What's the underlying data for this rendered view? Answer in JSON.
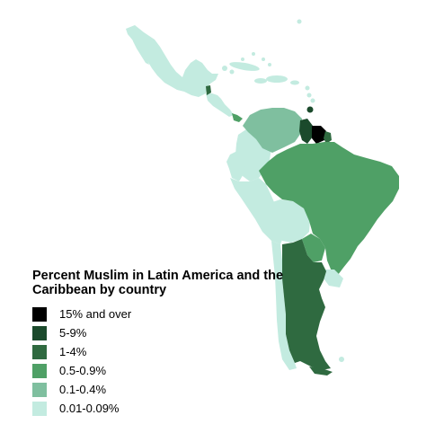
{
  "legend": {
    "title": "Percent Muslim in Latin America and the Caribbean by country",
    "items": [
      {
        "label": "15% and over",
        "color": "#000000"
      },
      {
        "label": "5-9%",
        "color": "#1b4a2c"
      },
      {
        "label": "1-4%",
        "color": "#2f6a40"
      },
      {
        "label": "0.5-0.9%",
        "color": "#4fa066"
      },
      {
        "label": "0.1-0.4%",
        "color": "#7fbf9f"
      },
      {
        "label": "0.01-0.09%",
        "color": "#c3ebe0"
      }
    ]
  },
  "regions": [
    {
      "name": "Mexico",
      "category": "0.01-0.09%"
    },
    {
      "name": "Central America",
      "category": "0.01-0.09%"
    },
    {
      "name": "Belize",
      "category": "1-4%"
    },
    {
      "name": "Panama",
      "category": "0.5-0.9%"
    },
    {
      "name": "Caribbean islands",
      "category": "0.01-0.09%"
    },
    {
      "name": "Trinidad and Tobago",
      "category": "5-9%"
    },
    {
      "name": "Colombia",
      "category": "0.01-0.09%"
    },
    {
      "name": "Venezuela",
      "category": "0.1-0.4%"
    },
    {
      "name": "Guyana",
      "category": "5-9%"
    },
    {
      "name": "Suriname",
      "category": "15% and over"
    },
    {
      "name": "French Guiana",
      "category": "1-4%"
    },
    {
      "name": "Ecuador",
      "category": "0.01-0.09%"
    },
    {
      "name": "Peru",
      "category": "0.01-0.09%"
    },
    {
      "name": "Bolivia",
      "category": "0.01-0.09%"
    },
    {
      "name": "Brazil",
      "category": "0.5-0.9%"
    },
    {
      "name": "Paraguay",
      "category": "0.5-0.9%"
    },
    {
      "name": "Uruguay",
      "category": "0.01-0.09%"
    },
    {
      "name": "Chile",
      "category": "0.01-0.09%"
    },
    {
      "name": "Argentina",
      "category": "1-4%"
    }
  ]
}
